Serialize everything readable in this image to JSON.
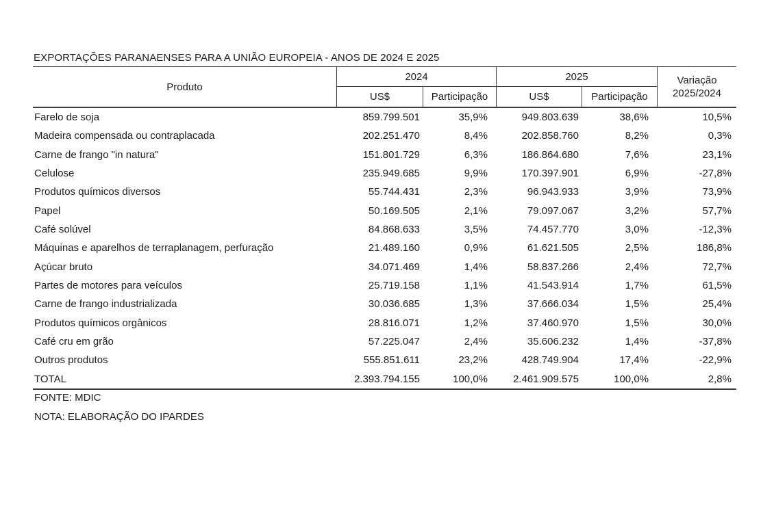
{
  "title": "EXPORTAÇÕES PARANAENSES PARA A UNIÃO EUROPEIA - ANOS DE 2024 E 2025",
  "table": {
    "headers": {
      "produto": "Produto",
      "year_2024": "2024",
      "year_2025": "2025",
      "usd_2024": "US$",
      "participacao_2024": "Participação",
      "usd_2025": "US$",
      "participacao_2025": "Participação",
      "variacao_line1": "Variação",
      "variacao_line2": "2025/2024"
    },
    "rows": [
      {
        "produto": "Farelo de soja",
        "usd_2024": "859.799.501",
        "part_2024": "35,9%",
        "usd_2025": "949.803.639",
        "part_2025": "38,6%",
        "variacao": "10,5%"
      },
      {
        "produto": "Madeira compensada ou contraplacada",
        "usd_2024": "202.251.470",
        "part_2024": "8,4%",
        "usd_2025": "202.858.760",
        "part_2025": "8,2%",
        "variacao": "0,3%"
      },
      {
        "produto": "Carne de frango \"in natura\"",
        "usd_2024": "151.801.729",
        "part_2024": "6,3%",
        "usd_2025": "186.864.680",
        "part_2025": "7,6%",
        "variacao": "23,1%"
      },
      {
        "produto": "Celulose",
        "usd_2024": "235.949.685",
        "part_2024": "9,9%",
        "usd_2025": "170.397.901",
        "part_2025": "6,9%",
        "variacao": "-27,8%"
      },
      {
        "produto": "Produtos químicos diversos",
        "usd_2024": "55.744.431",
        "part_2024": "2,3%",
        "usd_2025": "96.943.933",
        "part_2025": "3,9%",
        "variacao": "73,9%"
      },
      {
        "produto": "Papel",
        "usd_2024": "50.169.505",
        "part_2024": "2,1%",
        "usd_2025": "79.097.067",
        "part_2025": "3,2%",
        "variacao": "57,7%"
      },
      {
        "produto": "Café solúvel",
        "usd_2024": "84.868.633",
        "part_2024": "3,5%",
        "usd_2025": "74.457.770",
        "part_2025": "3,0%",
        "variacao": "-12,3%"
      },
      {
        "produto": "Máquinas e aparelhos de terraplanagem, perfuração",
        "usd_2024": "21.489.160",
        "part_2024": "0,9%",
        "usd_2025": "61.621.505",
        "part_2025": "2,5%",
        "variacao": "186,8%"
      },
      {
        "produto": "Açúcar bruto",
        "usd_2024": "34.071.469",
        "part_2024": "1,4%",
        "usd_2025": "58.837.266",
        "part_2025": "2,4%",
        "variacao": "72,7%"
      },
      {
        "produto": "Partes de motores para veículos",
        "usd_2024": "25.719.158",
        "part_2024": "1,1%",
        "usd_2025": "41.543.914",
        "part_2025": "1,7%",
        "variacao": "61,5%"
      },
      {
        "produto": "Carne de frango industrializada",
        "usd_2024": "30.036.685",
        "part_2024": "1,3%",
        "usd_2025": "37.666.034",
        "part_2025": "1,5%",
        "variacao": "25,4%"
      },
      {
        "produto": "Produtos químicos orgânicos",
        "usd_2024": "28.816.071",
        "part_2024": "1,2%",
        "usd_2025": "37.460.970",
        "part_2025": "1,5%",
        "variacao": "30,0%"
      },
      {
        "produto": "Café cru em grão",
        "usd_2024": "57.225.047",
        "part_2024": "2,4%",
        "usd_2025": "35.606.232",
        "part_2025": "1,4%",
        "variacao": "-37,8%"
      },
      {
        "produto": "Outros produtos",
        "usd_2024": "555.851.611",
        "part_2024": "23,2%",
        "usd_2025": "428.749.904",
        "part_2025": "17,4%",
        "variacao": "-22,9%"
      },
      {
        "produto": "TOTAL",
        "usd_2024": "2.393.794.155",
        "part_2024": "100,0%",
        "usd_2025": "2.461.909.575",
        "part_2025": "100,0%",
        "variacao": "2,8%"
      }
    ]
  },
  "footer": {
    "fonte": "FONTE: MDIC",
    "nota": "NOTA: ELABORAÇÃO DO IPARDES"
  }
}
